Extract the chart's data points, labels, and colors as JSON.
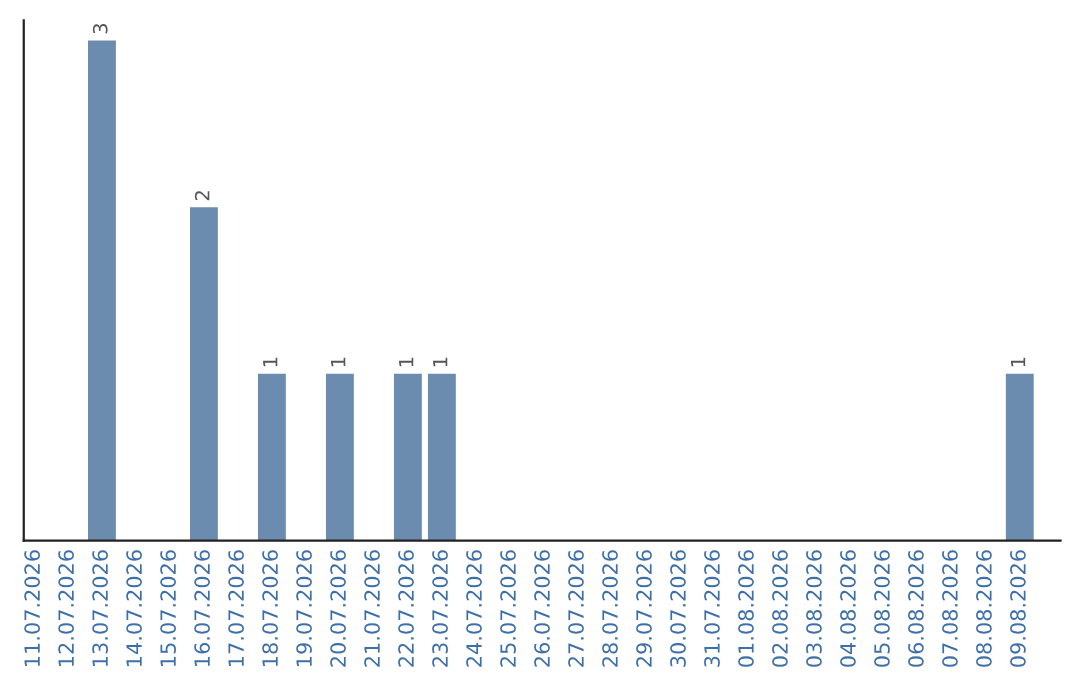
{
  "chart_data": {
    "type": "bar",
    "categories": [
      "11.07.2026",
      "12.07.2026",
      "13.07.2026",
      "14.07.2026",
      "15.07.2026",
      "16.07.2026",
      "17.07.2026",
      "18.07.2026",
      "19.07.2026",
      "20.07.2026",
      "21.07.2026",
      "22.07.2026",
      "23.07.2026",
      "24.07.2026",
      "25.07.2026",
      "26.07.2026",
      "27.07.2026",
      "28.07.2026",
      "29.07.2026",
      "30.07.2026",
      "31.07.2026",
      "01.08.2026",
      "02.08.2026",
      "03.08.2026",
      "04.08.2026",
      "05.08.2026",
      "06.08.2026",
      "07.08.2026",
      "08.08.2026",
      "09.08.2026"
    ],
    "values": [
      0,
      0,
      3,
      0,
      0,
      2,
      0,
      1,
      0,
      1,
      0,
      1,
      1,
      0,
      0,
      0,
      0,
      0,
      0,
      0,
      0,
      0,
      0,
      0,
      0,
      0,
      0,
      0,
      0,
      1
    ],
    "value_labels": [
      null,
      null,
      "3",
      null,
      null,
      "2",
      null,
      "1",
      null,
      "1",
      null,
      "1",
      "1",
      null,
      null,
      null,
      null,
      null,
      null,
      null,
      null,
      null,
      null,
      null,
      null,
      null,
      null,
      null,
      null,
      "1"
    ],
    "color": "#6b8cae",
    "grid": false,
    "legend": false
  }
}
